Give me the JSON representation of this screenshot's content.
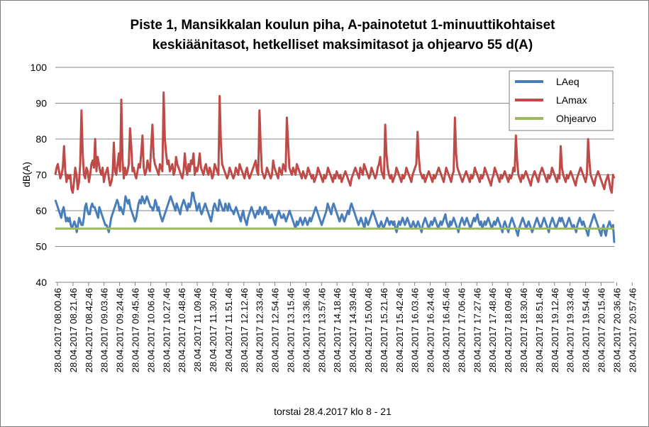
{
  "chart_data": {
    "type": "line",
    "title_lines": [
      "Piste 1, Mansikkalan koulun piha, A-painotetut 1-minuuttikohtaiset",
      "keskiäänitasot, hetkelliset maksimitasot ja ohjearvo 55 d(A)"
    ],
    "xlabel": "torstai 28.4.2017 klo 8 - 21",
    "ylabel": "dB(A)",
    "ylim": [
      40,
      100
    ],
    "yticks": [
      40,
      50,
      60,
      70,
      80,
      90,
      100
    ],
    "grid": "horizontal",
    "legend_position": "top-right",
    "x_range": [
      "28.04.2017 08.00.46",
      "28.04.2017 21.00.46"
    ],
    "x_tick_labels": [
      "28.04.2017 08.00.46",
      "28.04.2017 08.21.46",
      "28.04.2017 08.42.46",
      "28.04.2017 09.03.46",
      "28.04.2017 09.24.46",
      "28.04.2017 09.45.46",
      "28.04.2017 10.06.46",
      "28.04.2017 10.27.46",
      "28.04.2017 10.48.46",
      "28.04.2017 11.09.46",
      "28.04.2017 11.30.46",
      "28.04.2017 11.51.46",
      "28.04.2017 12.12.46",
      "28.04.2017 12.33.46",
      "28.04.2017 12.54.46",
      "28.04.2017 13.15.46",
      "28.04.2017 13.36.46",
      "28.04.2017 13.57.46",
      "28.04.2017 14.18.46",
      "28.04.2017 14.39.46",
      "28.04.2017 15.00.46",
      "28.04.2017 15.21.46",
      "28.04.2017 15.42.46",
      "28.04.2017 16.03.46",
      "28.04.2017 16.24.46",
      "28.04.2017 16.45.46",
      "28.04.2017 17.06.46",
      "28.04.2017 17.27.46",
      "28.04.2017 17.48.46",
      "28.04.2017 18.09.46",
      "28.04.2017 18.30.46",
      "28.04.2017 18.51.46",
      "28.04.2017 19.12.46",
      "28.04.2017 19.33.46",
      "28.04.2017 19.54.46",
      "28.04.2017 20.15.46",
      "28.04.2017 20.36.46",
      "28.04.2017 20.57.46"
    ],
    "series": [
      {
        "name": "LAeq",
        "color": "#4a7ebb",
        "values": [
          63,
          62,
          61,
          60,
          59,
          58,
          60,
          61,
          59,
          57,
          58,
          57,
          58,
          56,
          55,
          56,
          57,
          56,
          54,
          56,
          58,
          57,
          56,
          56,
          58,
          61,
          62,
          60,
          59,
          59,
          61,
          62,
          61,
          61,
          60,
          59,
          58,
          61,
          60,
          59,
          58,
          57,
          56,
          56,
          55,
          54,
          56,
          58,
          59,
          60,
          61,
          62,
          63,
          62,
          60,
          61,
          60,
          59,
          61,
          64,
          63,
          62,
          63,
          61,
          60,
          59,
          58,
          57,
          58,
          60,
          62,
          63,
          62,
          64,
          63,
          62,
          63,
          64,
          63,
          62,
          61,
          61,
          60,
          61,
          63,
          62,
          60,
          61,
          59,
          58,
          57,
          58,
          59,
          60,
          61,
          62,
          63,
          64,
          63,
          62,
          61,
          60,
          62,
          61,
          60,
          59,
          61,
          62,
          63,
          62,
          61,
          60,
          62,
          61,
          62,
          65,
          65,
          63,
          62,
          60,
          61,
          62,
          60,
          59,
          60,
          61,
          62,
          61,
          60,
          59,
          58,
          57,
          59,
          61,
          62,
          61,
          60,
          60,
          63,
          62,
          61,
          60,
          60,
          62,
          61,
          60,
          62,
          61,
          60,
          60,
          59,
          60,
          61,
          60,
          59,
          58,
          57,
          59,
          60,
          58,
          57,
          56,
          58,
          59,
          60,
          61,
          60,
          59,
          58,
          59,
          60,
          59,
          61,
          60,
          59,
          60,
          61,
          61,
          59,
          60,
          58,
          58,
          59,
          58,
          57,
          56,
          58,
          59,
          60,
          59,
          58,
          58,
          59,
          58,
          57,
          58,
          59,
          60,
          59,
          58,
          57,
          56,
          55,
          57,
          56,
          57,
          58,
          57,
          56,
          57,
          58,
          57,
          56,
          57,
          58,
          57,
          58,
          59,
          60,
          61,
          60,
          59,
          58,
          57,
          56,
          57,
          58,
          59,
          60,
          62,
          61,
          60,
          59,
          61,
          62,
          61,
          60,
          59,
          58,
          57,
          58,
          59,
          58,
          57,
          58,
          59,
          60,
          59,
          61,
          62,
          61,
          60,
          59,
          58,
          57,
          56,
          57,
          58,
          57,
          56,
          55,
          58,
          57,
          56,
          57,
          58,
          59,
          60,
          59,
          58,
          57,
          56,
          55,
          56,
          57,
          56,
          55,
          56,
          57,
          58,
          57,
          56,
          57,
          57,
          56,
          57,
          55,
          54,
          56,
          57,
          56,
          57,
          58,
          57,
          56,
          57,
          58,
          57,
          56,
          55,
          56,
          57,
          56,
          55,
          56,
          57,
          56,
          55,
          54,
          56,
          57,
          58,
          57,
          56,
          55,
          56,
          57,
          56,
          57,
          58,
          57,
          56,
          55,
          56,
          57,
          56,
          57,
          58,
          59,
          57,
          56,
          55,
          57,
          56,
          57,
          58,
          57,
          56,
          55,
          54,
          56,
          57,
          58,
          57,
          56,
          57,
          58,
          57,
          56,
          55,
          56,
          57,
          58,
          57,
          58,
          59,
          57,
          56,
          57,
          55,
          56,
          57,
          56,
          57,
          58,
          57,
          56,
          55,
          56,
          57,
          56,
          57,
          58,
          57,
          56,
          55,
          54,
          56,
          57,
          56,
          55,
          54,
          56,
          57,
          58,
          57,
          56,
          55,
          54,
          53,
          55,
          56,
          57,
          58,
          57,
          56,
          55,
          56,
          57,
          56,
          55,
          54,
          55,
          56,
          57,
          58,
          57,
          56,
          55,
          56,
          57,
          58,
          57,
          56,
          55,
          54,
          56,
          57,
          58,
          57,
          56,
          55,
          56,
          57,
          58,
          57,
          58,
          57,
          56,
          55,
          56,
          57,
          58,
          57,
          56,
          55,
          56,
          55,
          54,
          56,
          57,
          58,
          57,
          56,
          57,
          56,
          55,
          54,
          53,
          55,
          56,
          57,
          58,
          59,
          58,
          57,
          56,
          55,
          54,
          53,
          55,
          56,
          54,
          53,
          55,
          56,
          57,
          56,
          55,
          56,
          51
        ]
      },
      {
        "name": "LAmax",
        "color": "#be4b48",
        "values": [
          70,
          72,
          73,
          71,
          69,
          70,
          72,
          78,
          71,
          68,
          70,
          69,
          70,
          66,
          65,
          68,
          72,
          70,
          66,
          68,
          73,
          88,
          76,
          70,
          69,
          72,
          71,
          68,
          70,
          73,
          74,
          72,
          80,
          71,
          75,
          73,
          71,
          70,
          72,
          68,
          70,
          71,
          72,
          69,
          67,
          68,
          70,
          79,
          71,
          70,
          73,
          76,
          71,
          91,
          74,
          69,
          72,
          70,
          71,
          73,
          83,
          78,
          71,
          72,
          70,
          69,
          71,
          73,
          72,
          76,
          81,
          72,
          70,
          71,
          74,
          72,
          71,
          78,
          84,
          75,
          73,
          72,
          71,
          70,
          73,
          72,
          71,
          93,
          80,
          76,
          73,
          74,
          71,
          72,
          73,
          70,
          71,
          75,
          73,
          72,
          71,
          70,
          69,
          71,
          76,
          72,
          70,
          73,
          71,
          74,
          73,
          76,
          70,
          72,
          71,
          73,
          76,
          72,
          71,
          70,
          72,
          73,
          71,
          70,
          72,
          71,
          69,
          70,
          73,
          72,
          71,
          70,
          92,
          79,
          73,
          72,
          71,
          70,
          69,
          70,
          72,
          71,
          70,
          69,
          70,
          72,
          71,
          70,
          73,
          72,
          71,
          70,
          69,
          71,
          72,
          70,
          69,
          70,
          71,
          72,
          73,
          74,
          71,
          70,
          88,
          78,
          71,
          70,
          69,
          70,
          72,
          71,
          70,
          69,
          70,
          74,
          72,
          71,
          70,
          69,
          72,
          71,
          70,
          73,
          72,
          71,
          86,
          79,
          72,
          71,
          70,
          72,
          71,
          70,
          73,
          72,
          71,
          70,
          69,
          71,
          70,
          69,
          70,
          72,
          71,
          70,
          69,
          70,
          68,
          69,
          70,
          72,
          71,
          70,
          69,
          68,
          70,
          69,
          70,
          72,
          71,
          70,
          69,
          68,
          70,
          69,
          71,
          70,
          69,
          70,
          68,
          69,
          70,
          71,
          70,
          69,
          68,
          67,
          69,
          70,
          71,
          72,
          71,
          70,
          69,
          72,
          71,
          70,
          73,
          72,
          71,
          70,
          69,
          70,
          72,
          71,
          70,
          69,
          70,
          72,
          73,
          75,
          71,
          70,
          69,
          84,
          76,
          72,
          70,
          69,
          70,
          68,
          69,
          70,
          72,
          71,
          70,
          69,
          68,
          70,
          69,
          70,
          72,
          71,
          70,
          69,
          68,
          70,
          71,
          72,
          73,
          82,
          75,
          71,
          70,
          69,
          70,
          68,
          69,
          70,
          71,
          70,
          69,
          68,
          70,
          69,
          70,
          71,
          72,
          71,
          70,
          69,
          68,
          70,
          72,
          71,
          70,
          69,
          68,
          70,
          71,
          86,
          76,
          72,
          71,
          70,
          69,
          68,
          69,
          70,
          71,
          70,
          69,
          68,
          70,
          69,
          70,
          72,
          71,
          70,
          69,
          68,
          70,
          69,
          70,
          72,
          71,
          70,
          69,
          68,
          67,
          69,
          70,
          72,
          71,
          70,
          69,
          68,
          70,
          69,
          70,
          71,
          70,
          69,
          68,
          70,
          69,
          70,
          72,
          71,
          81,
          74,
          70,
          69,
          68,
          70,
          69,
          70,
          71,
          70,
          69,
          68,
          67,
          69,
          70,
          71,
          70,
          69,
          68,
          70,
          71,
          72,
          71,
          70,
          69,
          68,
          70,
          69,
          70,
          72,
          71,
          70,
          69,
          68,
          70,
          69,
          78,
          72,
          70,
          69,
          68,
          70,
          69,
          70,
          71,
          70,
          69,
          68,
          67,
          69,
          70,
          71,
          72,
          71,
          70,
          69,
          68,
          70,
          80,
          74,
          70,
          69,
          68,
          67,
          69,
          70,
          71,
          70,
          69,
          68,
          67,
          66,
          68,
          69,
          70,
          68,
          66,
          65,
          70,
          69
        ]
      },
      {
        "name": "Ohjearvo",
        "color": "#9bbb59",
        "constant": 55
      }
    ]
  }
}
